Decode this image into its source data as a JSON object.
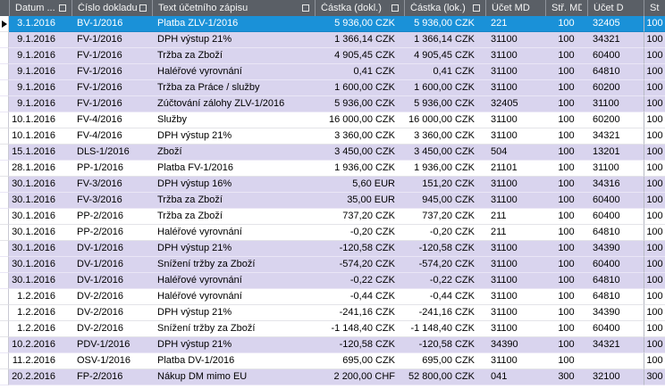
{
  "header": {
    "columns": [
      {
        "label": "Datum ...",
        "filter": true
      },
      {
        "label": "Číslo dokladu",
        "filter": true
      },
      {
        "label": "Text účetního zápisu",
        "filter": true
      },
      {
        "label": "Částka (dokl.)",
        "filter": true
      },
      {
        "label": "Částka (lok.)",
        "filter": true
      },
      {
        "label": "Účet MD",
        "filter": false
      },
      {
        "label": "Stř. MD",
        "filter": false
      },
      {
        "label": "Účet D",
        "filter": false
      },
      {
        "label": "St...",
        "filter": false
      }
    ]
  },
  "colors": {
    "header_bg": "#5a5f66",
    "selected_row_bg": "#1a91d8",
    "stripe_lavender": "#d9d4ee",
    "stripe_white": "#ffffff"
  },
  "rows": [
    {
      "date": "3.1.2016",
      "doc": "BV-1/2016",
      "text": "Platba ZLV-1/2016",
      "amount_doc": "5 936,00 CZK",
      "amount_loc": "5 936,00 CZK",
      "account_md": "221",
      "center_md": "100",
      "account_d": "32405",
      "center_d": "100",
      "shade": "lavender",
      "selected": true
    },
    {
      "date": "9.1.2016",
      "doc": "FV-1/2016",
      "text": "DPH výstup 21%",
      "amount_doc": "1 366,14 CZK",
      "amount_loc": "1 366,14 CZK",
      "account_md": "31100",
      "center_md": "100",
      "account_d": "34321",
      "center_d": "100",
      "shade": "lavender",
      "selected": false
    },
    {
      "date": "9.1.2016",
      "doc": "FV-1/2016",
      "text": "Tržba za Zboží",
      "amount_doc": "4 905,45 CZK",
      "amount_loc": "4 905,45 CZK",
      "account_md": "31100",
      "center_md": "100",
      "account_d": "60400",
      "center_d": "100",
      "shade": "lavender",
      "selected": false
    },
    {
      "date": "9.1.2016",
      "doc": "FV-1/2016",
      "text": "Haléřové vyrovnání",
      "amount_doc": "0,41 CZK",
      "amount_loc": "0,41 CZK",
      "account_md": "31100",
      "center_md": "100",
      "account_d": "64810",
      "center_d": "100",
      "shade": "lavender",
      "selected": false
    },
    {
      "date": "9.1.2016",
      "doc": "FV-1/2016",
      "text": "Tržba za Práce / služby",
      "amount_doc": "1 600,00 CZK",
      "amount_loc": "1 600,00 CZK",
      "account_md": "31100",
      "center_md": "100",
      "account_d": "60200",
      "center_d": "100",
      "shade": "lavender",
      "selected": false
    },
    {
      "date": "9.1.2016",
      "doc": "FV-1/2016",
      "text": "Zúčtování zálohy ZLV-1/2016",
      "amount_doc": "5 936,00 CZK",
      "amount_loc": "5 936,00 CZK",
      "account_md": "32405",
      "center_md": "100",
      "account_d": "31100",
      "center_d": "100",
      "shade": "lavender",
      "selected": false
    },
    {
      "date": "10.1.2016",
      "doc": "FV-4/2016",
      "text": "Služby",
      "amount_doc": "16 000,00 CZK",
      "amount_loc": "16 000,00 CZK",
      "account_md": "31100",
      "center_md": "100",
      "account_d": "60200",
      "center_d": "100",
      "shade": "white",
      "selected": false
    },
    {
      "date": "10.1.2016",
      "doc": "FV-4/2016",
      "text": "DPH výstup 21%",
      "amount_doc": "3 360,00 CZK",
      "amount_loc": "3 360,00 CZK",
      "account_md": "31100",
      "center_md": "100",
      "account_d": "34321",
      "center_d": "100",
      "shade": "white",
      "selected": false
    },
    {
      "date": "15.1.2016",
      "doc": "DLS-1/2016",
      "text": "Zboží",
      "amount_doc": "3 450,00 CZK",
      "amount_loc": "3 450,00 CZK",
      "account_md": "504",
      "center_md": "100",
      "account_d": "13201",
      "center_d": "100",
      "shade": "lavender",
      "selected": false
    },
    {
      "date": "28.1.2016",
      "doc": "PP-1/2016",
      "text": "Platba FV-1/2016",
      "amount_doc": "1 936,00 CZK",
      "amount_loc": "1 936,00 CZK",
      "account_md": "21101",
      "center_md": "100",
      "account_d": "31100",
      "center_d": "100",
      "shade": "white",
      "selected": false
    },
    {
      "date": "30.1.2016",
      "doc": "FV-3/2016",
      "text": "DPH výstup 16%",
      "amount_doc": "5,60 EUR",
      "amount_loc": "151,20 CZK",
      "account_md": "31100",
      "center_md": "100",
      "account_d": "34316",
      "center_d": "100",
      "shade": "lavender",
      "selected": false
    },
    {
      "date": "30.1.2016",
      "doc": "FV-3/2016",
      "text": "Tržba za Zboží",
      "amount_doc": "35,00 EUR",
      "amount_loc": "945,00 CZK",
      "account_md": "31100",
      "center_md": "100",
      "account_d": "60400",
      "center_d": "100",
      "shade": "lavender",
      "selected": false
    },
    {
      "date": "30.1.2016",
      "doc": "PP-2/2016",
      "text": "Tržba za Zboží",
      "amount_doc": "737,20 CZK",
      "amount_loc": "737,20 CZK",
      "account_md": "211",
      "center_md": "100",
      "account_d": "60400",
      "center_d": "100",
      "shade": "white",
      "selected": false
    },
    {
      "date": "30.1.2016",
      "doc": "PP-2/2016",
      "text": "Haléřové vyrovnání",
      "amount_doc": "-0,20 CZK",
      "amount_loc": "-0,20 CZK",
      "account_md": "211",
      "center_md": "100",
      "account_d": "64810",
      "center_d": "100",
      "shade": "white",
      "selected": false
    },
    {
      "date": "30.1.2016",
      "doc": "DV-1/2016",
      "text": "DPH výstup 21%",
      "amount_doc": "-120,58 CZK",
      "amount_loc": "-120,58 CZK",
      "account_md": "31100",
      "center_md": "100",
      "account_d": "34390",
      "center_d": "100",
      "shade": "lavender",
      "selected": false
    },
    {
      "date": "30.1.2016",
      "doc": "DV-1/2016",
      "text": "Snížení tržby za Zboží",
      "amount_doc": "-574,20 CZK",
      "amount_loc": "-574,20 CZK",
      "account_md": "31100",
      "center_md": "100",
      "account_d": "60400",
      "center_d": "100",
      "shade": "lavender",
      "selected": false
    },
    {
      "date": "30.1.2016",
      "doc": "DV-1/2016",
      "text": "Haléřové vyrovnání",
      "amount_doc": "-0,22 CZK",
      "amount_loc": "-0,22 CZK",
      "account_md": "31100",
      "center_md": "100",
      "account_d": "64810",
      "center_d": "100",
      "shade": "lavender",
      "selected": false
    },
    {
      "date": "1.2.2016",
      "doc": "DV-2/2016",
      "text": "Haléřové vyrovnání",
      "amount_doc": "-0,44 CZK",
      "amount_loc": "-0,44 CZK",
      "account_md": "31100",
      "center_md": "100",
      "account_d": "64810",
      "center_d": "100",
      "shade": "white",
      "selected": false
    },
    {
      "date": "1.2.2016",
      "doc": "DV-2/2016",
      "text": "DPH výstup 21%",
      "amount_doc": "-241,16 CZK",
      "amount_loc": "-241,16 CZK",
      "account_md": "31100",
      "center_md": "100",
      "account_d": "34390",
      "center_d": "100",
      "shade": "white",
      "selected": false
    },
    {
      "date": "1.2.2016",
      "doc": "DV-2/2016",
      "text": "Snížení tržby za Zboží",
      "amount_doc": "-1 148,40 CZK",
      "amount_loc": "-1 148,40 CZK",
      "account_md": "31100",
      "center_md": "100",
      "account_d": "60400",
      "center_d": "100",
      "shade": "white",
      "selected": false
    },
    {
      "date": "10.2.2016",
      "doc": "PDV-1/2016",
      "text": "DPH výstup 21%",
      "amount_doc": "-120,58 CZK",
      "amount_loc": "-120,58 CZK",
      "account_md": "34390",
      "center_md": "100",
      "account_d": "34321",
      "center_d": "100",
      "shade": "lavender",
      "selected": false
    },
    {
      "date": "11.2.2016",
      "doc": "OSV-1/2016",
      "text": "Platba DV-1/2016",
      "amount_doc": "695,00 CZK",
      "amount_loc": "695,00 CZK",
      "account_md": "31100",
      "center_md": "100",
      "account_d": "",
      "center_d": "100",
      "shade": "white",
      "selected": false
    },
    {
      "date": "20.2.2016",
      "doc": "FP-2/2016",
      "text": "Nákup DM mimo EU",
      "amount_doc": "2 200,00 CHF",
      "amount_loc": "52 800,00 CZK",
      "account_md": "041",
      "center_md": "300",
      "account_d": "32100",
      "center_d": "300",
      "shade": "lavender",
      "selected": false
    }
  ]
}
